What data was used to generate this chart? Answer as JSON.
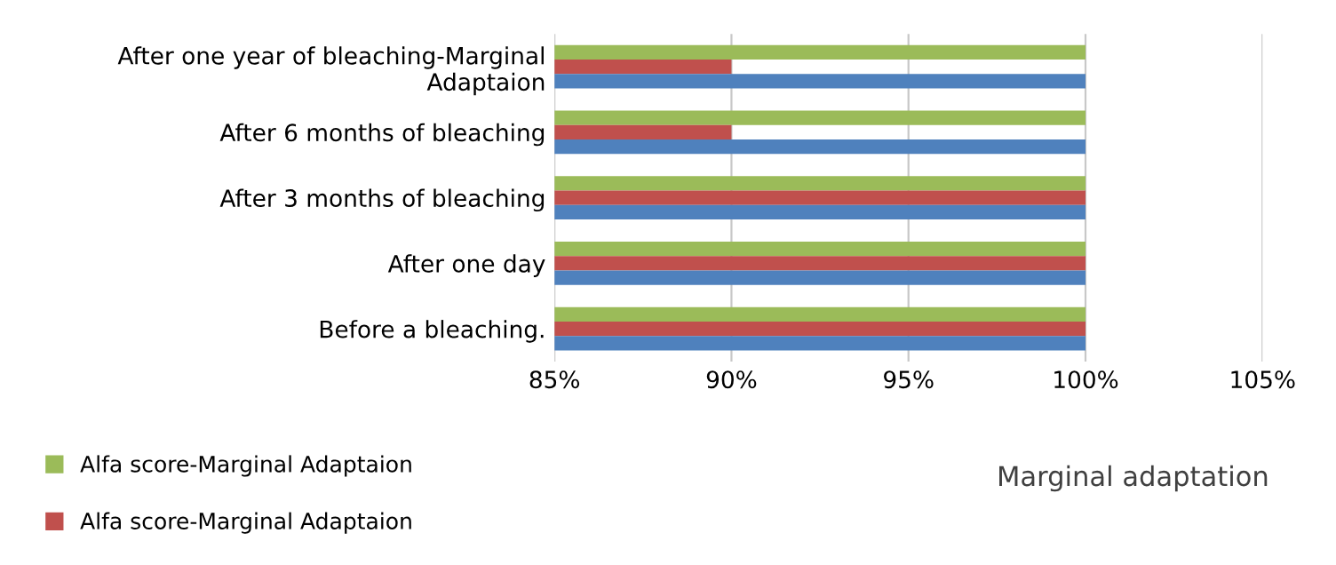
{
  "chart_data": {
    "type": "bar",
    "orientation": "horizontal",
    "xlabel": "Marginal adaptation",
    "categories": [
      "After one year of bleaching-Marginal\nAdaptaion",
      "After 6 months of bleaching",
      "After 3 months of bleaching",
      "After one day",
      "Before a bleaching."
    ],
    "series": [
      {
        "name": "Alfa score-Marginal Adaptaion",
        "color": "#9bbb59",
        "values": [
          100,
          100,
          100,
          100,
          100
        ]
      },
      {
        "name": "Alfa score-Marginal Adaptaion",
        "color": "#c0504d",
        "values": [
          90,
          90,
          100,
          100,
          100
        ]
      },
      {
        "color": "#4f81bd",
        "values": [
          100,
          100,
          100,
          100,
          100
        ]
      }
    ],
    "xlim": [
      85,
      105
    ],
    "xticks": [
      {
        "value": 85,
        "label": "85%"
      },
      {
        "value": 90,
        "label": "90%"
      },
      {
        "value": 95,
        "label": "95%"
      },
      {
        "value": 100,
        "label": "100%"
      },
      {
        "value": 105,
        "label": "105%"
      }
    ],
    "grid": "x",
    "legend": "bottom left"
  }
}
